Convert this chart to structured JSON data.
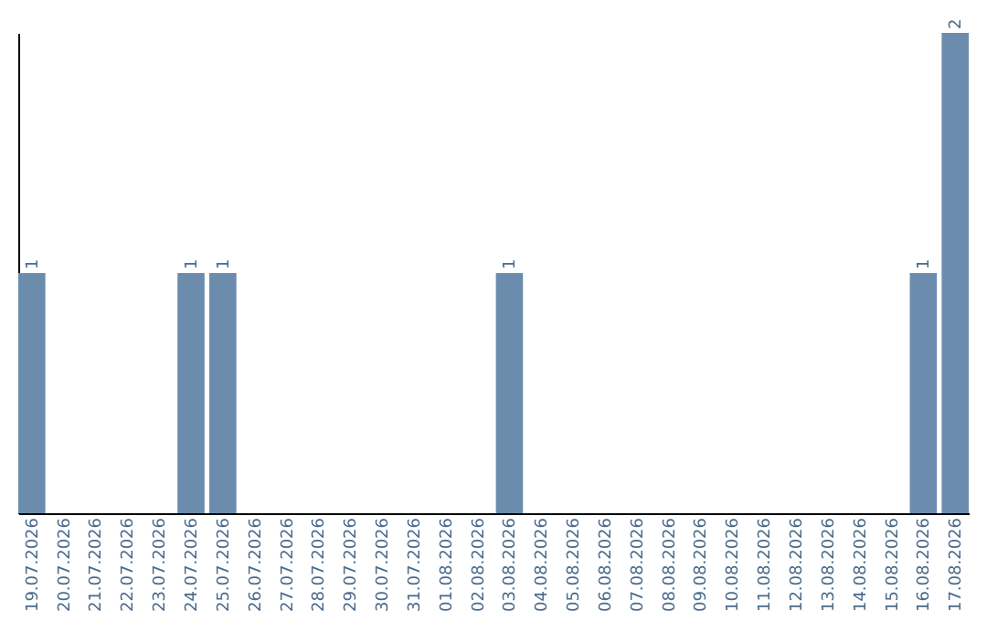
{
  "chart_data": {
    "type": "bar",
    "categories": [
      "19.07.2026",
      "20.07.2026",
      "21.07.2026",
      "22.07.2026",
      "23.07.2026",
      "24.07.2026",
      "25.07.2026",
      "26.07.2026",
      "27.07.2026",
      "28.07.2026",
      "29.07.2026",
      "30.07.2026",
      "31.07.2026",
      "01.08.2026",
      "02.08.2026",
      "03.08.2026",
      "04.08.2026",
      "05.08.2026",
      "06.08.2026",
      "07.08.2026",
      "08.08.2026",
      "09.08.2026",
      "10.08.2026",
      "11.08.2026",
      "12.08.2026",
      "13.08.2026",
      "14.08.2026",
      "15.08.2026",
      "16.08.2026",
      "17.08.2026"
    ],
    "values": [
      1,
      0,
      0,
      0,
      0,
      1,
      1,
      0,
      0,
      0,
      0,
      0,
      0,
      0,
      0,
      1,
      0,
      0,
      0,
      0,
      0,
      0,
      0,
      0,
      0,
      0,
      0,
      0,
      1,
      2
    ],
    "value_labels": [
      "1",
      null,
      null,
      null,
      null,
      "1",
      "1",
      null,
      null,
      null,
      null,
      null,
      null,
      null,
      null,
      "1",
      null,
      null,
      null,
      null,
      null,
      null,
      null,
      null,
      null,
      null,
      null,
      null,
      "1",
      "2"
    ],
    "color": "#6b8cac",
    "grid": false,
    "tick_labels": "x"
  }
}
